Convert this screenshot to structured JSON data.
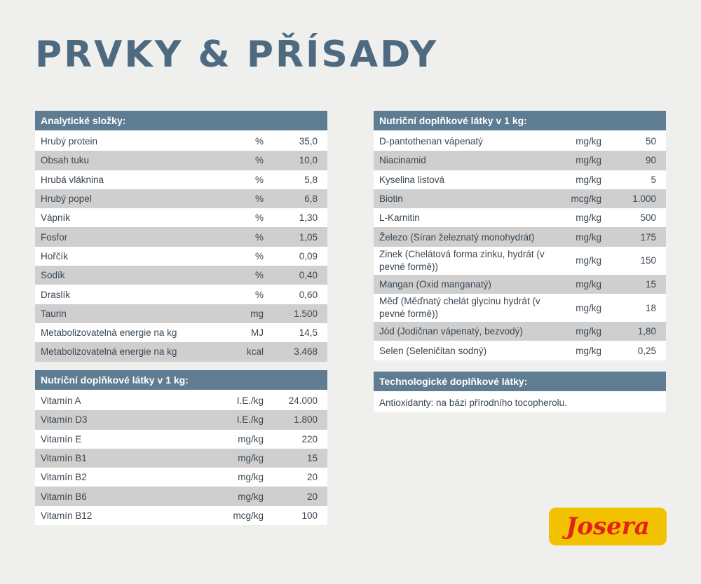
{
  "title": "PRVKY & PŘÍSADY",
  "analytic": {
    "header": "Analytické složky:",
    "rows": [
      {
        "name": "Hrubý protein",
        "unit": "%",
        "value": "35,0"
      },
      {
        "name": "Obsah tuku",
        "unit": "%",
        "value": "10,0"
      },
      {
        "name": "Hrubá vláknina",
        "unit": "%",
        "value": "5,8"
      },
      {
        "name": "Hrubý popel",
        "unit": "%",
        "value": "6,8"
      },
      {
        "name": "Vápník",
        "unit": "%",
        "value": "1,30"
      },
      {
        "name": "Fosfor",
        "unit": "%",
        "value": "1,05"
      },
      {
        "name": "Hořčík",
        "unit": "%",
        "value": "0,09"
      },
      {
        "name": "Sodík",
        "unit": "%",
        "value": "0,40"
      },
      {
        "name": "Draslík",
        "unit": "%",
        "value": "0,60"
      },
      {
        "name": "Taurin",
        "unit": "mg",
        "value": "1.500"
      },
      {
        "name": "Metabolizovatelná energie na kg",
        "unit": "MJ",
        "value": "14,5"
      },
      {
        "name": "Metabolizovatelná energie na kg",
        "unit": "kcal",
        "value": "3.468"
      }
    ]
  },
  "vitamins": {
    "header": "Nutriční doplňkové látky v 1 kg:",
    "rows": [
      {
        "name": "Vitamín A",
        "unit": "I.E./kg",
        "value": "24.000"
      },
      {
        "name": "Vitamín D3",
        "unit": "I.E./kg",
        "value": "1.800"
      },
      {
        "name": "Vitamín E",
        "unit": "mg/kg",
        "value": "220"
      },
      {
        "name": "Vitamín B1",
        "unit": "mg/kg",
        "value": "15"
      },
      {
        "name": "Vitamín B2",
        "unit": "mg/kg",
        "value": "20"
      },
      {
        "name": "Vitamín B6",
        "unit": "mg/kg",
        "value": "20"
      },
      {
        "name": "Vitamín B12",
        "unit": "mcg/kg",
        "value": "100"
      }
    ]
  },
  "nutritional": {
    "header": "Nutriční doplňkové látky v 1 kg:",
    "rows": [
      {
        "name": "D-pantothenan vápenatý",
        "unit": "mg/kg",
        "value": "50"
      },
      {
        "name": "Niacinamid",
        "unit": "mg/kg",
        "value": "90"
      },
      {
        "name": "Kyselina listová",
        "unit": "mg/kg",
        "value": "5"
      },
      {
        "name": "Biotin",
        "unit": "mcg/kg",
        "value": "1.000"
      },
      {
        "name": "L-Karnitin",
        "unit": "mg/kg",
        "value": "500"
      },
      {
        "name": "Železo (Síran železnatý monohydrát)",
        "unit": "mg/kg",
        "value": "175"
      },
      {
        "name": "Zinek (Chelátová forma zinku, hydrát (v pevné formě))",
        "unit": "mg/kg",
        "value": "150"
      },
      {
        "name": "Mangan (Oxid manganatý)",
        "unit": "mg/kg",
        "value": "15"
      },
      {
        "name": "Měď (Měďnatý chelát glycinu hydrát (v pevné formě))",
        "unit": "mg/kg",
        "value": "18"
      },
      {
        "name": "Jód (Jodičnan vápenatý, bezvodý)",
        "unit": "mg/kg",
        "value": "1,80"
      },
      {
        "name": "Selen (Seleničitan sodný)",
        "unit": "mg/kg",
        "value": "0,25"
      }
    ]
  },
  "technological": {
    "header": "Technologické doplňkové látky:",
    "text": "Antioxidanty: na bázi přírodního tocopherolu."
  },
  "brand": {
    "logo_text": "Josera",
    "logo_background": "#f2c200",
    "logo_text_color": "#e2231a"
  },
  "colors": {
    "header_bg": "#5e7d92",
    "title": "#4e6a80",
    "stripe": "#cfcfcf"
  }
}
